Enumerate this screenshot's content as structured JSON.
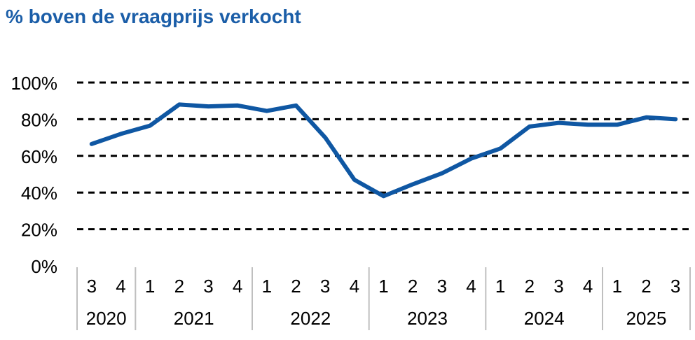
{
  "title": "% boven de vraagprijs verkocht",
  "colors": {
    "title": "#1b5ea8",
    "line": "#0f57a3",
    "grid": "#000000",
    "axis": "#bfbfbf"
  },
  "chart_data": {
    "type": "line",
    "title": "% boven de vraagprijs verkocht",
    "xlabel": "",
    "ylabel": "",
    "ylim": [
      0,
      100
    ],
    "yticks": [
      "0%",
      "20%",
      "40%",
      "60%",
      "80%",
      "100%"
    ],
    "grid": true,
    "grid_style": "dashed",
    "categories": [
      "3",
      "4",
      "1",
      "2",
      "3",
      "4",
      "1",
      "2",
      "3",
      "4",
      "1",
      "2",
      "3",
      "4",
      "1",
      "2",
      "3",
      "4",
      "1",
      "2",
      "3"
    ],
    "years": [
      {
        "label": "2020",
        "quarters": 2
      },
      {
        "label": "2021",
        "quarters": 4
      },
      {
        "label": "2022",
        "quarters": 4
      },
      {
        "label": "2023",
        "quarters": 4
      },
      {
        "label": "2024",
        "quarters": 4
      },
      {
        "label": "2025",
        "quarters": 3
      }
    ],
    "series": [
      {
        "values": [
          66.5,
          72,
          76.5,
          88,
          87,
          87.5,
          84.5,
          87.5,
          70,
          47,
          38,
          44.5,
          50.5,
          58.5,
          64,
          76,
          78,
          77,
          77,
          81,
          80
        ]
      }
    ]
  }
}
